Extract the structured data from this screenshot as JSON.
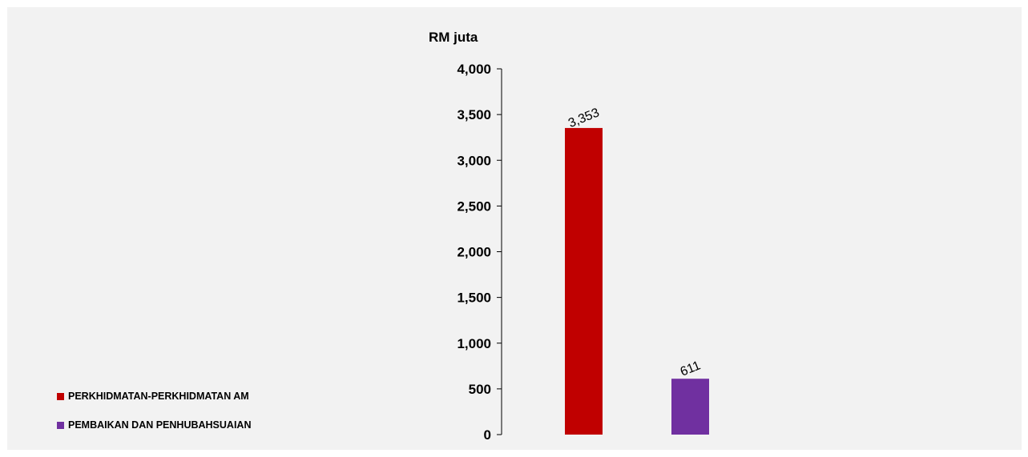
{
  "chart_data": {
    "type": "bar",
    "ylabel": "RM juta",
    "ylim": [
      0,
      4000
    ],
    "yticks": [
      0,
      500,
      1000,
      1500,
      2000,
      2500,
      3000,
      3500,
      4000
    ],
    "ytick_labels": [
      "0",
      "500",
      "1,000",
      "1,500",
      "2,000",
      "2,500",
      "3,000",
      "3,500",
      "4,000"
    ],
    "categories": [
      "PERKHIDMATAN-PERKHIDMATAN AM",
      "PEMBAIKAN DAN PENHUBAHSUAIAN"
    ],
    "values": [
      3353,
      611
    ],
    "data_labels": [
      "3,353",
      "611"
    ],
    "colors": [
      "#c00000",
      "#7030a0"
    ],
    "legend": {
      "placement": "bottom-left",
      "entries": [
        {
          "label": "PERKHIDMATAN-PERKHIDMATAN AM",
          "color": "#c00000"
        },
        {
          "label": "PEMBAIKAN DAN PENHUBAHSUAIAN",
          "color": "#7030a0"
        }
      ]
    },
    "grid": false
  }
}
